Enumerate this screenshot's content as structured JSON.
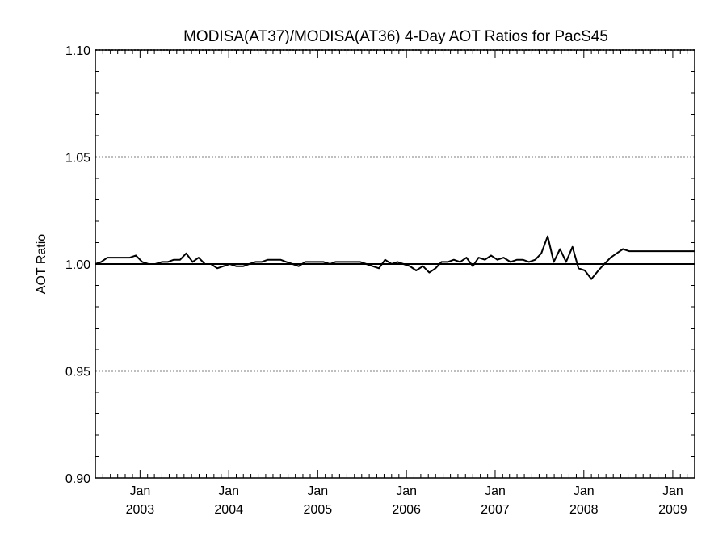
{
  "chart_data": {
    "type": "line",
    "title": "MODISA(AT37)/MODISA(AT36) 4-Day AOT Ratios for PacS45",
    "xlabel": "",
    "ylabel": "AOT Ratio",
    "x_range": [
      "2002-07-01",
      "2009-04-01"
    ],
    "ylim": [
      0.9,
      1.1
    ],
    "y_ticks": [
      "0.90",
      "0.95",
      "1.00",
      "1.05",
      "1.10"
    ],
    "y_gridlines": [
      0.95,
      1.05,
      1.1
    ],
    "reference_line": 1.0,
    "x_ticks": [
      {
        "date": "2003-01-01",
        "line1": "Jan",
        "line2": "2003"
      },
      {
        "date": "2004-01-01",
        "line1": "Jan",
        "line2": "2004"
      },
      {
        "date": "2005-01-01",
        "line1": "Jan",
        "line2": "2005"
      },
      {
        "date": "2006-01-01",
        "line1": "Jan",
        "line2": "2006"
      },
      {
        "date": "2007-01-01",
        "line1": "Jan",
        "line2": "2007"
      },
      {
        "date": "2008-01-01",
        "line1": "Jan",
        "line2": "2008"
      },
      {
        "date": "2009-01-01",
        "line1": "Jan",
        "line2": "2009"
      }
    ],
    "grid": "dotted horizontal at major ticks",
    "series": [
      {
        "x": [
          "2002-07-01",
          "2002-07-25",
          "2002-08-20",
          "2002-09-10",
          "2002-10-01",
          "2002-10-25",
          "2002-11-20",
          "2002-12-15",
          "2003-01-10",
          "2003-02-05",
          "2003-03-05",
          "2003-04-01",
          "2003-04-25",
          "2003-05-20",
          "2003-06-15",
          "2003-07-10",
          "2003-08-05",
          "2003-08-30",
          "2003-09-25",
          "2003-10-20",
          "2003-11-15",
          "2003-12-10",
          "2004-01-05",
          "2004-02-01",
          "2004-03-01",
          "2004-03-25",
          "2004-04-20",
          "2004-05-15",
          "2004-06-10",
          "2004-07-05",
          "2004-08-01",
          "2004-08-25",
          "2004-09-20",
          "2004-10-15",
          "2004-11-10",
          "2004-12-05",
          "2005-01-01",
          "2005-01-25",
          "2005-02-20",
          "2005-03-15",
          "2005-04-10",
          "2005-05-05",
          "2005-06-01",
          "2005-06-25",
          "2005-07-20",
          "2005-08-15",
          "2005-09-10",
          "2005-10-05",
          "2005-11-01",
          "2005-11-25",
          "2005-12-20",
          "2006-01-15",
          "2006-02-10",
          "2006-03-10",
          "2006-04-05",
          "2006-05-01",
          "2006-05-25",
          "2006-06-20",
          "2006-07-15",
          "2006-08-10",
          "2006-09-05",
          "2006-10-01",
          "2006-10-25",
          "2006-11-20",
          "2006-12-15",
          "2007-01-10",
          "2007-02-05",
          "2007-03-05",
          "2007-04-01",
          "2007-04-25",
          "2007-05-20",
          "2007-06-15",
          "2007-07-10",
          "2007-08-05",
          "2007-08-30",
          "2007-09-25",
          "2007-10-20",
          "2007-11-15",
          "2007-12-10",
          "2008-01-05",
          "2008-02-01",
          "2008-03-01",
          "2008-03-25",
          "2008-04-20",
          "2008-05-15",
          "2008-06-10",
          "2008-07-05",
          "2008-08-01",
          "2008-08-25",
          "2008-09-20",
          "2008-10-15",
          "2008-11-10",
          "2008-12-05",
          "2009-01-01",
          "2009-01-25",
          "2009-02-20",
          "2009-03-15",
          "2009-04-01"
        ],
        "y": [
          1.0,
          1.001,
          1.003,
          1.003,
          1.003,
          1.003,
          1.003,
          1.004,
          1.001,
          1.0,
          1.0,
          1.001,
          1.001,
          1.002,
          1.002,
          1.005,
          1.001,
          1.003,
          1.0,
          1.0,
          0.998,
          0.999,
          1.0,
          0.999,
          0.999,
          1.0,
          1.001,
          1.001,
          1.002,
          1.002,
          1.002,
          1.001,
          1.0,
          0.999,
          1.001,
          1.001,
          1.001,
          1.001,
          1.0,
          1.001,
          1.001,
          1.001,
          1.001,
          1.001,
          1.0,
          0.999,
          0.998,
          1.002,
          1.0,
          1.001,
          1.0,
          0.999,
          0.997,
          0.999,
          0.996,
          0.998,
          1.001,
          1.001,
          1.002,
          1.001,
          1.003,
          0.999,
          1.003,
          1.002,
          1.004,
          1.002,
          1.003,
          1.001,
          1.002,
          1.002,
          1.001,
          1.002,
          1.005,
          1.013,
          1.001,
          1.007,
          1.001,
          1.008,
          0.998,
          0.997,
          0.993,
          0.997,
          1.0,
          1.003,
          1.005,
          1.007,
          1.006,
          1.006,
          1.006,
          1.006,
          1.006,
          1.006,
          1.006,
          1.006,
          1.006,
          1.006,
          1.006,
          1.006
        ]
      }
    ]
  }
}
